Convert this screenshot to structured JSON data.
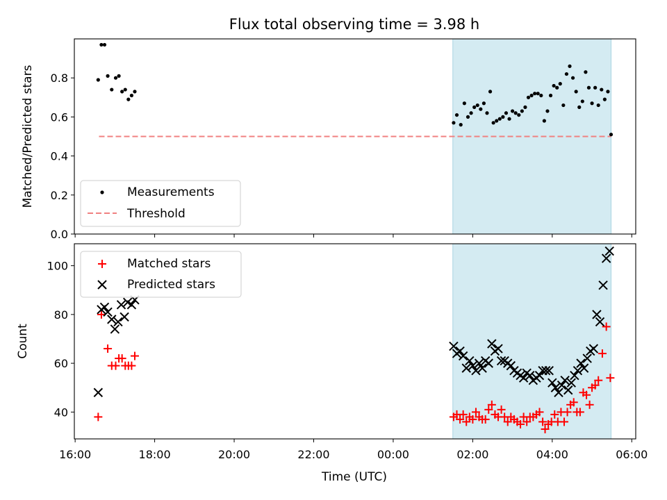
{
  "figure": {
    "title": "Flux total observing time = 3.98 h",
    "xlabel": "Time (UTC)",
    "x_ticks": [
      "16:00",
      "18:00",
      "20:00",
      "22:00",
      "00:00",
      "02:00",
      "04:00",
      "06:00"
    ]
  },
  "chart_data": [
    {
      "type": "scatter",
      "ylabel": "Matched/Predicted stars",
      "x_unit": "hours since 16:00 UTC",
      "xlim": [
        -0.02,
        14.1
      ],
      "ylim": [
        0,
        1.0
      ],
      "y_ticks": [
        0.0,
        0.2,
        0.4,
        0.6,
        0.8
      ],
      "highlight_span": [
        9.5,
        13.48
      ],
      "highlight_color": "#d4ebf2",
      "legend": {
        "placement": "lower-left",
        "entries": [
          "Measurements",
          "Threshold"
        ]
      },
      "threshold": {
        "name": "Threshold",
        "value": 0.5,
        "x_range": [
          0.6,
          13.48
        ],
        "color": "#f08080"
      },
      "series": [
        {
          "name": "Measurements",
          "color": "#000000",
          "points": [
            [
              0.58,
              0.79
            ],
            [
              0.66,
              0.97
            ],
            [
              0.74,
              0.97
            ],
            [
              0.82,
              0.81
            ],
            [
              0.92,
              0.74
            ],
            [
              1.02,
              0.8
            ],
            [
              1.1,
              0.81
            ],
            [
              1.18,
              0.73
            ],
            [
              1.26,
              0.74
            ],
            [
              1.34,
              0.69
            ],
            [
              1.42,
              0.71
            ],
            [
              1.5,
              0.73
            ],
            [
              9.52,
              0.57
            ],
            [
              9.6,
              0.61
            ],
            [
              9.7,
              0.56
            ],
            [
              9.79,
              0.67
            ],
            [
              9.88,
              0.6
            ],
            [
              9.96,
              0.62
            ],
            [
              10.04,
              0.65
            ],
            [
              10.12,
              0.66
            ],
            [
              10.2,
              0.64
            ],
            [
              10.28,
              0.67
            ],
            [
              10.36,
              0.62
            ],
            [
              10.44,
              0.73
            ],
            [
              10.52,
              0.57
            ],
            [
              10.6,
              0.58
            ],
            [
              10.68,
              0.59
            ],
            [
              10.76,
              0.6
            ],
            [
              10.84,
              0.62
            ],
            [
              10.92,
              0.59
            ],
            [
              11.0,
              0.63
            ],
            [
              11.08,
              0.62
            ],
            [
              11.16,
              0.61
            ],
            [
              11.24,
              0.63
            ],
            [
              11.32,
              0.65
            ],
            [
              11.4,
              0.7
            ],
            [
              11.48,
              0.71
            ],
            [
              11.56,
              0.72
            ],
            [
              11.64,
              0.72
            ],
            [
              11.72,
              0.71
            ],
            [
              11.8,
              0.58
            ],
            [
              11.88,
              0.63
            ],
            [
              11.96,
              0.71
            ],
            [
              12.04,
              0.76
            ],
            [
              12.12,
              0.75
            ],
            [
              12.2,
              0.77
            ],
            [
              12.28,
              0.66
            ],
            [
              12.36,
              0.82
            ],
            [
              12.44,
              0.86
            ],
            [
              12.52,
              0.8
            ],
            [
              12.6,
              0.73
            ],
            [
              12.68,
              0.65
            ],
            [
              12.76,
              0.68
            ],
            [
              12.84,
              0.83
            ],
            [
              12.92,
              0.75
            ],
            [
              13.0,
              0.67
            ],
            [
              13.08,
              0.75
            ],
            [
              13.16,
              0.66
            ],
            [
              13.24,
              0.74
            ],
            [
              13.32,
              0.69
            ],
            [
              13.4,
              0.73
            ],
            [
              13.48,
              0.51
            ]
          ]
        }
      ]
    },
    {
      "type": "scatter",
      "ylabel": "Count",
      "x_unit": "hours since 16:00 UTC",
      "xlim": [
        -0.02,
        14.1
      ],
      "ylim": [
        29,
        109
      ],
      "y_ticks": [
        40,
        60,
        80,
        100
      ],
      "highlight_span": [
        9.5,
        13.48
      ],
      "highlight_color": "#d4ebf2",
      "legend": {
        "placement": "upper-left",
        "entries": [
          "Matched stars",
          "Predicted stars"
        ]
      },
      "series": [
        {
          "name": "Matched stars",
          "marker": "plus",
          "color": "#ff0000",
          "points": [
            [
              0.58,
              38
            ],
            [
              0.66,
              80
            ],
            [
              0.82,
              66
            ],
            [
              0.92,
              59
            ],
            [
              1.02,
              59
            ],
            [
              1.1,
              62
            ],
            [
              1.18,
              62
            ],
            [
              1.26,
              59
            ],
            [
              1.34,
              59
            ],
            [
              1.42,
              59
            ],
            [
              1.5,
              63
            ],
            [
              9.52,
              38
            ],
            [
              9.6,
              39
            ],
            [
              9.68,
              37
            ],
            [
              9.76,
              39
            ],
            [
              9.84,
              36
            ],
            [
              9.92,
              38
            ],
            [
              10.0,
              37
            ],
            [
              10.08,
              40
            ],
            [
              10.16,
              38
            ],
            [
              10.24,
              37
            ],
            [
              10.32,
              37
            ],
            [
              10.4,
              41
            ],
            [
              10.48,
              43
            ],
            [
              10.56,
              39
            ],
            [
              10.64,
              38
            ],
            [
              10.72,
              41
            ],
            [
              10.8,
              38
            ],
            [
              10.88,
              36
            ],
            [
              10.96,
              38
            ],
            [
              11.04,
              37
            ],
            [
              11.12,
              36
            ],
            [
              11.2,
              35
            ],
            [
              11.28,
              38
            ],
            [
              11.36,
              36
            ],
            [
              11.44,
              38
            ],
            [
              11.52,
              38
            ],
            [
              11.6,
              39
            ],
            [
              11.68,
              40
            ],
            [
              11.76,
              36
            ],
            [
              11.82,
              33
            ],
            [
              11.9,
              35
            ],
            [
              11.98,
              36
            ],
            [
              12.06,
              39
            ],
            [
              12.14,
              36
            ],
            [
              12.22,
              40
            ],
            [
              12.3,
              36
            ],
            [
              12.38,
              40
            ],
            [
              12.46,
              43
            ],
            [
              12.54,
              44
            ],
            [
              12.62,
              40
            ],
            [
              12.7,
              40
            ],
            [
              12.78,
              48
            ],
            [
              12.86,
              47
            ],
            [
              12.94,
              43
            ],
            [
              13.0,
              50
            ],
            [
              13.08,
              51
            ],
            [
              13.16,
              53
            ],
            [
              13.26,
              64
            ],
            [
              13.36,
              75
            ],
            [
              13.46,
              54
            ]
          ]
        },
        {
          "name": "Predicted stars",
          "marker": "x",
          "color": "#000000",
          "points": [
            [
              0.58,
              48
            ],
            [
              0.66,
              82
            ],
            [
              0.74,
              83
            ],
            [
              0.82,
              81
            ],
            [
              0.92,
              78
            ],
            [
              1.0,
              74
            ],
            [
              1.08,
              77
            ],
            [
              1.16,
              84
            ],
            [
              1.24,
              79
            ],
            [
              1.32,
              85
            ],
            [
              1.42,
              84
            ],
            [
              1.5,
              86
            ],
            [
              9.52,
              67
            ],
            [
              9.6,
              64
            ],
            [
              9.68,
              65
            ],
            [
              9.76,
              63
            ],
            [
              9.84,
              58
            ],
            [
              9.92,
              61
            ],
            [
              10.0,
              59
            ],
            [
              10.08,
              57
            ],
            [
              10.16,
              60
            ],
            [
              10.24,
              58
            ],
            [
              10.32,
              61
            ],
            [
              10.4,
              60
            ],
            [
              10.48,
              68
            ],
            [
              10.56,
              65
            ],
            [
              10.64,
              66
            ],
            [
              10.72,
              61
            ],
            [
              10.8,
              61
            ],
            [
              10.88,
              60
            ],
            [
              10.96,
              59
            ],
            [
              11.04,
              57
            ],
            [
              11.12,
              56
            ],
            [
              11.2,
              55
            ],
            [
              11.28,
              54
            ],
            [
              11.36,
              56
            ],
            [
              11.44,
              55
            ],
            [
              11.52,
              53
            ],
            [
              11.6,
              54
            ],
            [
              11.68,
              55
            ],
            [
              11.76,
              57
            ],
            [
              11.84,
              57
            ],
            [
              11.92,
              57
            ],
            [
              12.0,
              52
            ],
            [
              12.08,
              50
            ],
            [
              12.16,
              48
            ],
            [
              12.24,
              51
            ],
            [
              12.32,
              53
            ],
            [
              12.4,
              49
            ],
            [
              12.48,
              52
            ],
            [
              12.56,
              55
            ],
            [
              12.64,
              57
            ],
            [
              12.72,
              60
            ],
            [
              12.8,
              58
            ],
            [
              12.88,
              62
            ],
            [
              12.96,
              65
            ],
            [
              13.04,
              66
            ],
            [
              13.12,
              80
            ],
            [
              13.2,
              77
            ],
            [
              13.28,
              92
            ],
            [
              13.36,
              103
            ],
            [
              13.44,
              106
            ]
          ]
        }
      ]
    }
  ]
}
